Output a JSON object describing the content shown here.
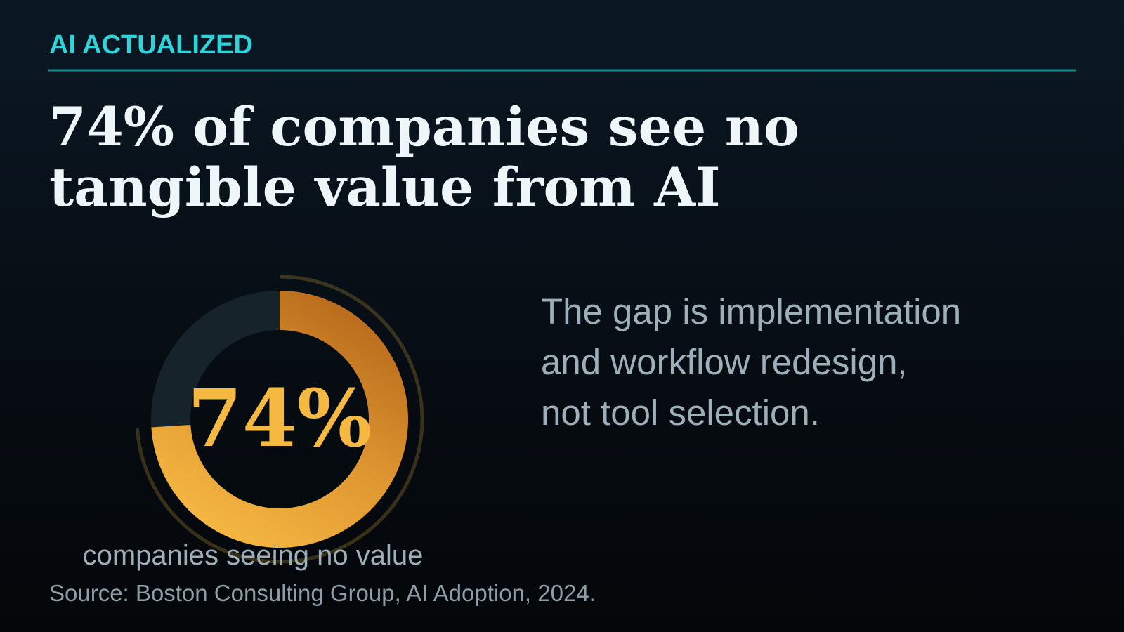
{
  "header": {
    "kicker": "AI ACTUALIZED"
  },
  "headline": {
    "lines": [
      "74% of companies see no",
      "tangible value from AI"
    ]
  },
  "chart_data": {
    "type": "gauge",
    "values": [
      74
    ],
    "value_labels": [
      "74%"
    ],
    "ylim": [
      0,
      100
    ],
    "label": "companies seeing no value",
    "color": "#f5b942",
    "track_color": "#16232b"
  },
  "body": {
    "lines": [
      "The gap is implementation",
      "and workflow redesign,",
      "not tool selection."
    ]
  },
  "source": "Source: Boston Consulting Group, AI Adoption, 2024."
}
